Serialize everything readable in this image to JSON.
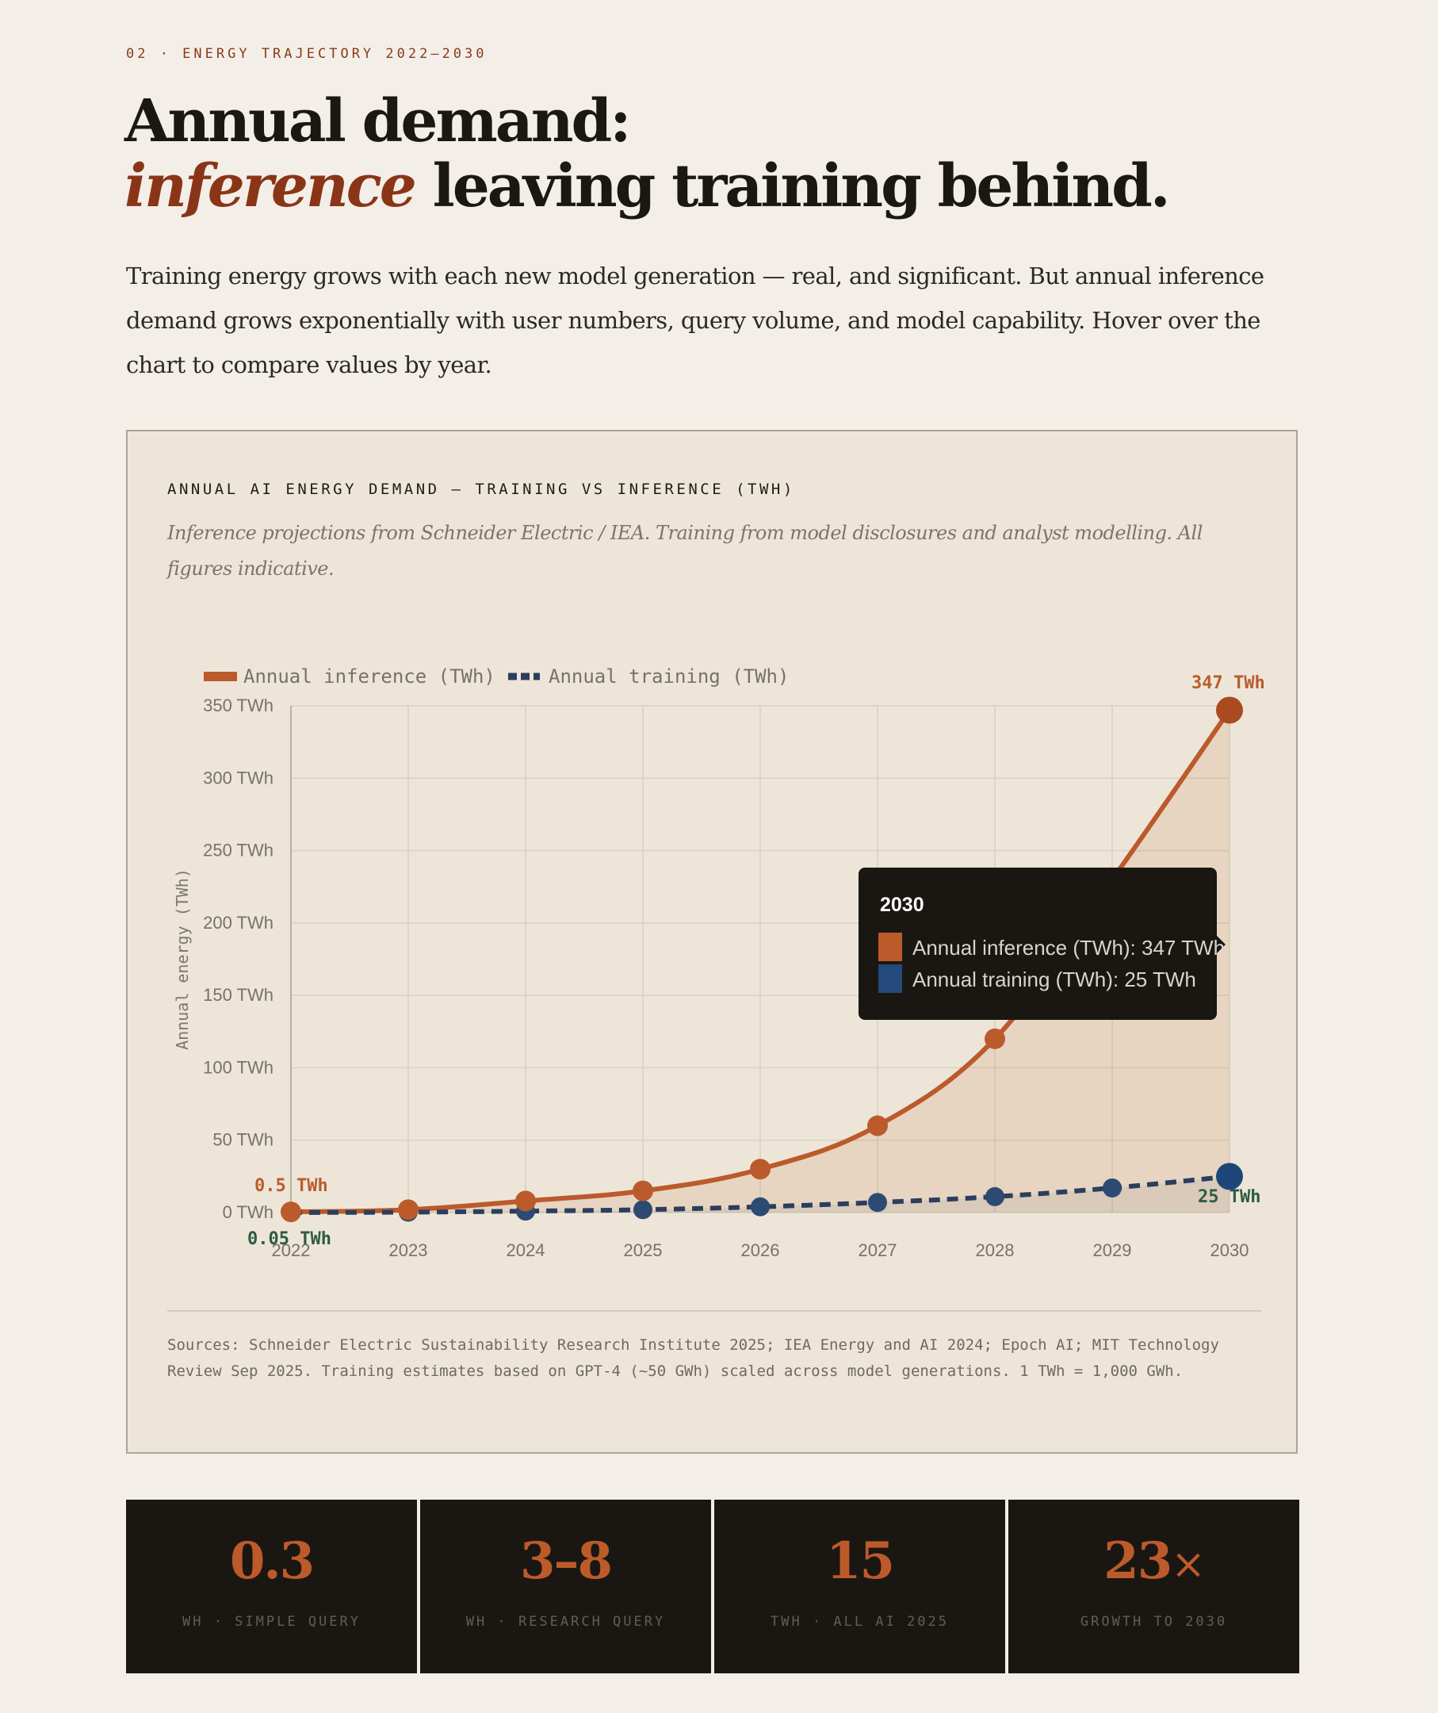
{
  "eyebrow": "02 · ENERGY TRAJECTORY 2022–2030",
  "headline": {
    "line1": "Annual demand:",
    "accent": "inference",
    "rest": " leaving training behind."
  },
  "lede": "Training energy grows with each new model generation — real, and significant. But annual inference demand grows exponentially with user numbers, query volume, and model capability. Hover over the chart to compare values by year.",
  "chart_card": {
    "title": "ANNUAL AI ENERGY DEMAND — TRAINING VS INFERENCE (TWH)",
    "subtitle": "Inference projections from Schneider Electric / IEA. Training from model disclosures and analyst modelling. All figures indicative.",
    "sources": "Sources: Schneider Electric Sustainability Research Institute 2025; IEA Energy and AI 2024; Epoch AI; MIT Technology Review Sep 2025. Training estimates based on GPT-4 (~50 GWh) scaled across model generations. 1 TWh = 1,000 GWh."
  },
  "chart_data": {
    "type": "line",
    "x": [
      "2022",
      "2023",
      "2024",
      "2025",
      "2026",
      "2027",
      "2028",
      "2029",
      "2030"
    ],
    "series": [
      {
        "name": "Annual inference (TWh)",
        "color": "#bb5a2b",
        "style": "solid-filled",
        "values": [
          0.5,
          2,
          8,
          15,
          30,
          60,
          120,
          230,
          347
        ]
      },
      {
        "name": "Annual training (TWh)",
        "color": "#2c3e5e",
        "style": "dashed",
        "values": [
          0.05,
          0.3,
          1,
          2,
          4,
          7,
          11,
          17,
          25
        ]
      }
    ],
    "ylabel": "Annual energy (TWh)",
    "yticks": [
      0,
      50,
      100,
      150,
      200,
      250,
      300,
      350
    ],
    "ytick_labels": [
      "0 TWh",
      "50 TWh",
      "100 TWh",
      "150 TWh",
      "200 TWh",
      "250 TWh",
      "300 TWh",
      "350 TWh"
    ],
    "ylim": [
      0,
      350
    ],
    "grid": true,
    "legend": "top-left",
    "annotations": {
      "inference_start": "0.5 TWh",
      "training_start": "0.05 TWh",
      "inference_end": "347 TWh",
      "training_end": "25 TWh"
    },
    "tooltip": {
      "title": "2030",
      "lines": [
        "Annual inference (TWh): 347 TWh",
        "Annual training (TWh): 25 TWh"
      ]
    }
  },
  "stats": [
    {
      "value": "0.3",
      "suffix": "",
      "label": "WH · SIMPLE QUERY"
    },
    {
      "value": "3–8",
      "suffix": "",
      "label": "WH · RESEARCH QUERY"
    },
    {
      "value": "15",
      "suffix": "",
      "label": "TWH · ALL AI 2025"
    },
    {
      "value": "23",
      "suffix": "×",
      "label": "GROWTH TO 2030"
    }
  ]
}
